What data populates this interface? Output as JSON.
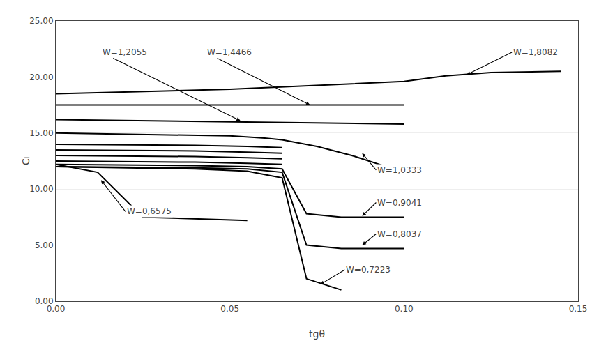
{
  "chart_data": {
    "type": "line",
    "xlabel": "tgθ",
    "ylabel": "Cₗ",
    "xlim": [
      0.0,
      0.15
    ],
    "ylim": [
      0.0,
      25.0
    ],
    "xticks": [
      {
        "value": 0.0,
        "label": "0.00"
      },
      {
        "value": 0.05,
        "label": "0.05"
      },
      {
        "value": 0.1,
        "label": "0.10"
      },
      {
        "value": 0.15,
        "label": "0.15"
      }
    ],
    "yticks": [
      {
        "value": 0.0,
        "label": "0.00"
      },
      {
        "value": 5.0,
        "label": "5.00"
      },
      {
        "value": 10.0,
        "label": "10.00"
      },
      {
        "value": 15.0,
        "label": "15.00"
      },
      {
        "value": 20.0,
        "label": "20.00"
      },
      {
        "value": 25.0,
        "label": "25.00"
      }
    ],
    "grid": "y",
    "color": "#000000",
    "series": [
      {
        "x": [
          0.0,
          0.05,
          0.1,
          0.112,
          0.125,
          0.145
        ],
        "values": [
          18.5,
          18.9,
          19.6,
          20.1,
          20.4,
          20.5
        ]
      },
      {
        "x": [
          0.0,
          0.05,
          0.1
        ],
        "values": [
          17.5,
          17.5,
          17.5
        ]
      },
      {
        "x": [
          0.0,
          0.05,
          0.1
        ],
        "values": [
          16.2,
          16.0,
          15.8
        ]
      },
      {
        "x": [
          0.0,
          0.04,
          0.05,
          0.06,
          0.065,
          0.075,
          0.085,
          0.1
        ],
        "values": [
          15.0,
          14.8,
          14.75,
          14.55,
          14.4,
          13.8,
          13.0,
          11.5
        ]
      },
      {
        "x": [
          0.0,
          0.04,
          0.055,
          0.065
        ],
        "values": [
          14.0,
          13.9,
          13.8,
          13.7
        ]
      },
      {
        "x": [
          0.0,
          0.04,
          0.055,
          0.065
        ],
        "values": [
          13.5,
          13.4,
          13.3,
          13.2
        ]
      },
      {
        "x": [
          0.0,
          0.04,
          0.055,
          0.065
        ],
        "values": [
          13.0,
          12.9,
          12.8,
          12.7
        ]
      },
      {
        "x": [
          0.0,
          0.04,
          0.055,
          0.065
        ],
        "values": [
          12.5,
          12.4,
          12.3,
          12.2
        ]
      },
      {
        "x": [
          0.0,
          0.04,
          0.055,
          0.065,
          0.072,
          0.082,
          0.1
        ],
        "values": [
          12.2,
          12.1,
          12.0,
          11.8,
          7.8,
          7.5,
          7.5
        ]
      },
      {
        "x": [
          0.0,
          0.04,
          0.055,
          0.065,
          0.072,
          0.082,
          0.1
        ],
        "values": [
          12.0,
          11.9,
          11.8,
          11.5,
          5.0,
          4.7,
          4.7
        ]
      },
      {
        "x": [
          0.0,
          0.04,
          0.055,
          0.065,
          0.072,
          0.082
        ],
        "values": [
          12.0,
          11.8,
          11.6,
          11.0,
          2.0,
          1.0
        ]
      },
      {
        "x": [
          0.0,
          0.012,
          0.025,
          0.055
        ],
        "values": [
          12.2,
          11.5,
          7.5,
          7.2
        ]
      }
    ],
    "annotations": [
      {
        "text": "W=1,8082",
        "xy": [
          0.118,
          20.2
        ],
        "xytext": [
          0.131,
          22.2
        ]
      },
      {
        "text": "W=1,4466",
        "xy": [
          0.073,
          17.5
        ],
        "xytext": [
          0.043,
          22.2
        ]
      },
      {
        "text": "W=1,2055",
        "xy": [
          0.053,
          16.1
        ],
        "xytext": [
          0.013,
          22.2
        ]
      },
      {
        "text": "W=0,6575",
        "xy": [
          0.013,
          10.8
        ],
        "xytext": [
          0.02,
          8.0
        ]
      },
      {
        "text": "W=1,0333",
        "xy": [
          0.088,
          13.2
        ],
        "xytext": [
          0.092,
          11.7
        ]
      },
      {
        "text": "W=0,9041",
        "xy": [
          0.088,
          7.6
        ],
        "xytext": [
          0.092,
          8.8
        ]
      },
      {
        "text": "W=0,8037",
        "xy": [
          0.088,
          5.0
        ],
        "xytext": [
          0.092,
          6.0
        ]
      },
      {
        "text": "W=0,7223",
        "xy": [
          0.076,
          1.5
        ],
        "xytext": [
          0.083,
          2.8
        ]
      }
    ]
  }
}
